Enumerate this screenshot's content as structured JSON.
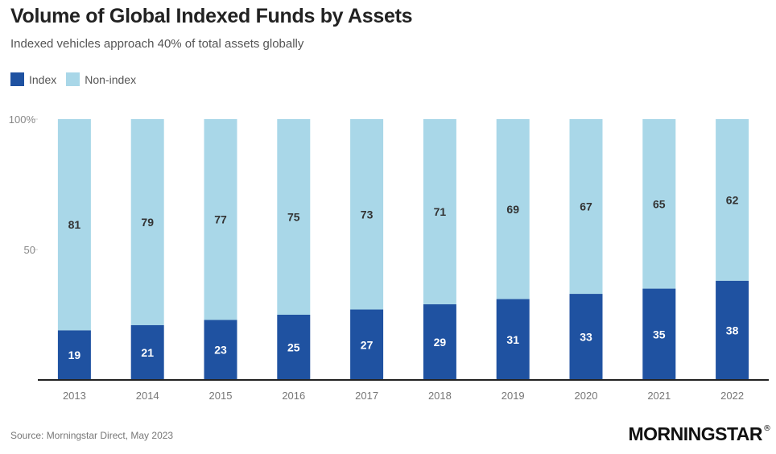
{
  "header": {
    "title": "Volume of Global Indexed Funds by Assets",
    "subtitle": "Indexed vehicles approach 40% of total assets globally"
  },
  "footer": {
    "source": "Source: Morningstar Direct, May 2023",
    "logo_text": "MORNINGSTAR",
    "logo_mark": "®"
  },
  "colors": {
    "index": "#1f52a1",
    "non_index": "#a9d7e8"
  },
  "chart_data": {
    "type": "bar",
    "stacked": true,
    "categories": [
      "2013",
      "2014",
      "2015",
      "2016",
      "2017",
      "2018",
      "2019",
      "2020",
      "2021",
      "2022"
    ],
    "series": [
      {
        "name": "Index",
        "values": [
          19,
          21,
          23,
          25,
          27,
          29,
          31,
          33,
          35,
          38
        ]
      },
      {
        "name": "Non-index",
        "values": [
          81,
          79,
          77,
          75,
          73,
          71,
          69,
          67,
          65,
          62
        ]
      }
    ],
    "ylim": [
      0,
      100
    ],
    "yticks": [
      {
        "value": 50,
        "label": "50"
      },
      {
        "value": 100,
        "label": "100%"
      }
    ],
    "legend_position": "top-left",
    "grid": false
  }
}
